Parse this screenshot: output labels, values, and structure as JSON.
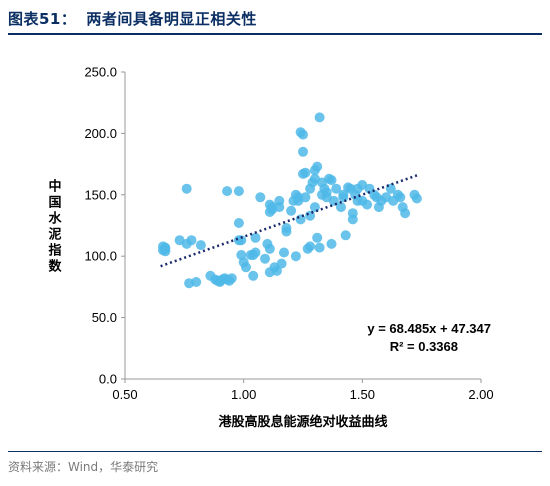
{
  "header": {
    "figure_number": "图表51：",
    "title": "两者间具备明显正相关性"
  },
  "source": "资料来源：Wind，华泰研究",
  "chart_data": {
    "type": "scatter",
    "xlabel": "港股高股息能源绝对收益曲线",
    "ylabel": "中国水泥指数",
    "xlim": [
      0.5,
      2.0
    ],
    "ylim": [
      0.0,
      250.0
    ],
    "x_ticks": [
      "0.50",
      "1.00",
      "1.50",
      "2.00"
    ],
    "y_ticks": [
      "0.0",
      "50.0",
      "100.0",
      "150.0",
      "200.0",
      "250.0"
    ],
    "x_tick_values": [
      0.5,
      1.0,
      1.5,
      2.0
    ],
    "y_tick_values": [
      0,
      50,
      100,
      150,
      200,
      250
    ],
    "point_color": "#4fb9e8",
    "trend_color": "#1a2a6c",
    "equation": "y = 68.485x + 47.347",
    "r_squared": "R² = 0.3368",
    "trendline": {
      "slope": 68.485,
      "intercept": 47.347,
      "x_range": [
        0.65,
        1.73
      ]
    },
    "points": [
      [
        0.66,
        105
      ],
      [
        0.66,
        108
      ],
      [
        0.67,
        106
      ],
      [
        0.67,
        107
      ],
      [
        0.67,
        104
      ],
      [
        0.73,
        113
      ],
      [
        0.76,
        155
      ],
      [
        0.76,
        110
      ],
      [
        0.77,
        78
      ],
      [
        0.78,
        113
      ],
      [
        0.8,
        79
      ],
      [
        0.82,
        109
      ],
      [
        0.86,
        84
      ],
      [
        0.88,
        81
      ],
      [
        0.89,
        80
      ],
      [
        0.9,
        80
      ],
      [
        0.9,
        79
      ],
      [
        0.91,
        81
      ],
      [
        0.92,
        82
      ],
      [
        0.93,
        81
      ],
      [
        0.94,
        80
      ],
      [
        0.95,
        82
      ],
      [
        0.93,
        153
      ],
      [
        0.98,
        153
      ],
      [
        0.98,
        113
      ],
      [
        0.98,
        127
      ],
      [
        0.99,
        113
      ],
      [
        0.99,
        101
      ],
      [
        1.0,
        95
      ],
      [
        1.01,
        91
      ],
      [
        1.03,
        101
      ],
      [
        1.04,
        84
      ],
      [
        1.04,
        101
      ],
      [
        1.05,
        103
      ],
      [
        1.05,
        115
      ],
      [
        1.07,
        148
      ],
      [
        1.09,
        98
      ],
      [
        1.1,
        110
      ],
      [
        1.11,
        106
      ],
      [
        1.11,
        136
      ],
      [
        1.11,
        142
      ],
      [
        1.12,
        138
      ],
      [
        1.12,
        140
      ],
      [
        1.11,
        87
      ],
      [
        1.13,
        91
      ],
      [
        1.14,
        88
      ],
      [
        1.15,
        140
      ],
      [
        1.15,
        145
      ],
      [
        1.16,
        94
      ],
      [
        1.17,
        103
      ],
      [
        1.18,
        120
      ],
      [
        1.18,
        123
      ],
      [
        1.2,
        137
      ],
      [
        1.21,
        145
      ],
      [
        1.22,
        150
      ],
      [
        1.22,
        100
      ],
      [
        1.23,
        145
      ],
      [
        1.23,
        148
      ],
      [
        1.24,
        130
      ],
      [
        1.24,
        201
      ],
      [
        1.25,
        199
      ],
      [
        1.25,
        185
      ],
      [
        1.25,
        167
      ],
      [
        1.26,
        148
      ],
      [
        1.26,
        168
      ],
      [
        1.27,
        106
      ],
      [
        1.28,
        108
      ],
      [
        1.28,
        133
      ],
      [
        1.28,
        155
      ],
      [
        1.29,
        160
      ],
      [
        1.3,
        163
      ],
      [
        1.3,
        170
      ],
      [
        1.3,
        140
      ],
      [
        1.31,
        173
      ],
      [
        1.31,
        115
      ],
      [
        1.32,
        213
      ],
      [
        1.32,
        107
      ],
      [
        1.33,
        160
      ],
      [
        1.33,
        150
      ],
      [
        1.34,
        155
      ],
      [
        1.35,
        152
      ],
      [
        1.35,
        148
      ],
      [
        1.36,
        163
      ],
      [
        1.37,
        162
      ],
      [
        1.37,
        110
      ],
      [
        1.38,
        145
      ],
      [
        1.39,
        155
      ],
      [
        1.41,
        140
      ],
      [
        1.42,
        150
      ],
      [
        1.42,
        148
      ],
      [
        1.43,
        117
      ],
      [
        1.44,
        156
      ],
      [
        1.45,
        155
      ],
      [
        1.46,
        135
      ],
      [
        1.46,
        130
      ],
      [
        1.47,
        150
      ],
      [
        1.48,
        155
      ],
      [
        1.48,
        145
      ],
      [
        1.5,
        158
      ],
      [
        1.5,
        145
      ],
      [
        1.52,
        142
      ],
      [
        1.53,
        155
      ],
      [
        1.55,
        150
      ],
      [
        1.56,
        148
      ],
      [
        1.57,
        140
      ],
      [
        1.58,
        145
      ],
      [
        1.6,
        148
      ],
      [
        1.62,
        155
      ],
      [
        1.63,
        145
      ],
      [
        1.65,
        150
      ],
      [
        1.66,
        148
      ],
      [
        1.67,
        140
      ],
      [
        1.68,
        135
      ],
      [
        1.72,
        150
      ],
      [
        1.73,
        147
      ]
    ]
  }
}
